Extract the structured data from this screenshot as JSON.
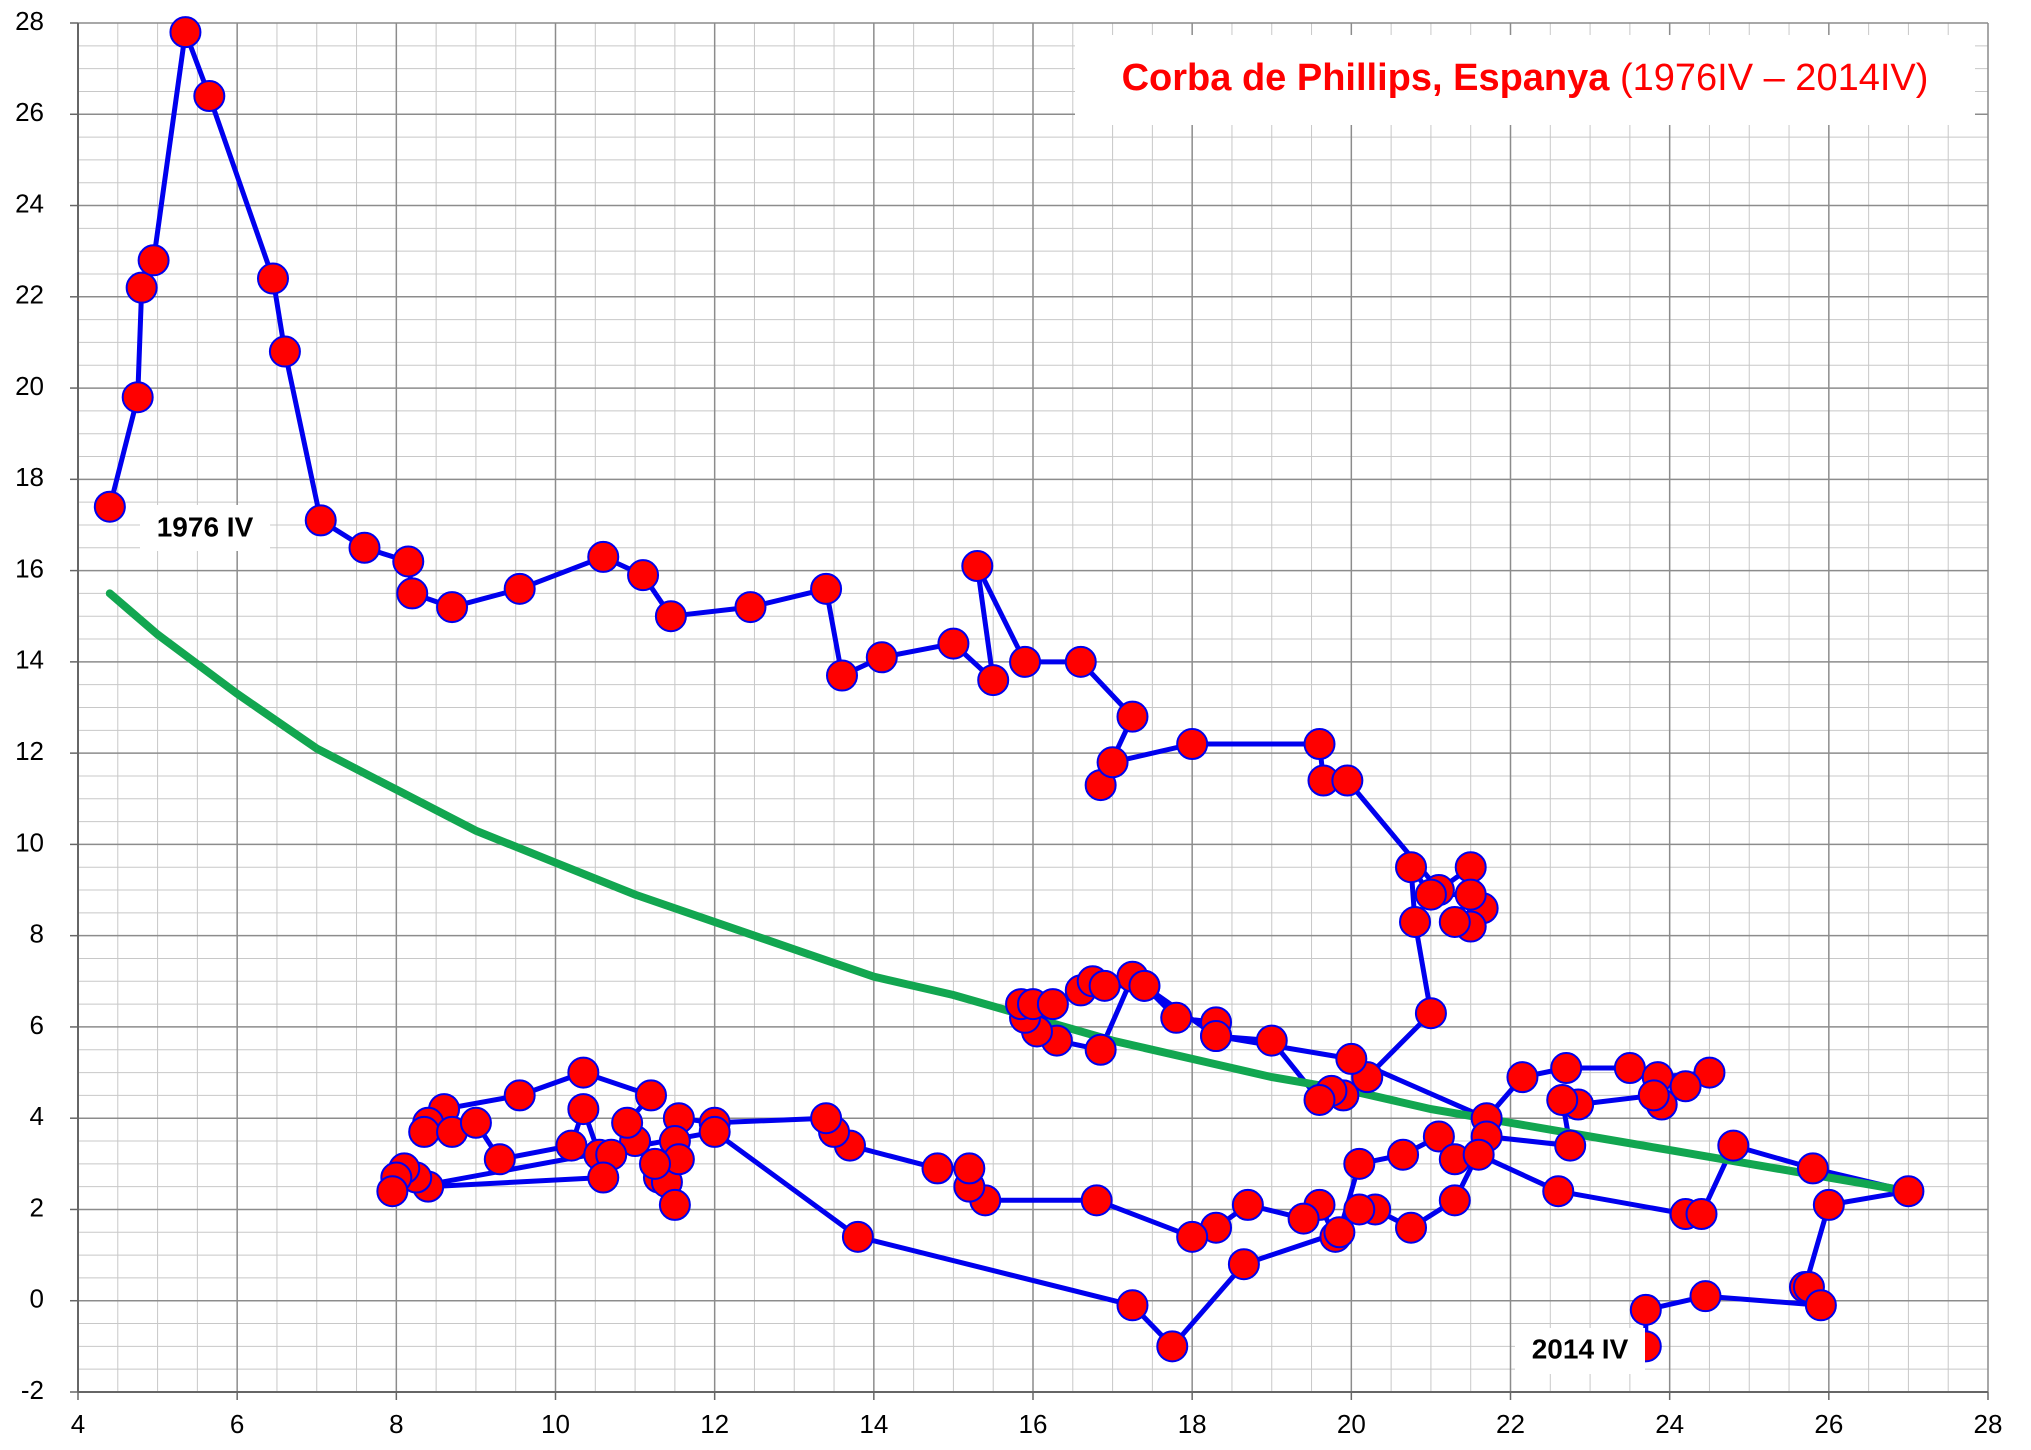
{
  "chart_data": {
    "type": "line",
    "title": "Corba de Phillips, Espanya",
    "subtitle": "(1976IV – 2014IV)",
    "annotations": [
      "1976 IV",
      "2014 IV"
    ],
    "xlim": [
      4,
      28
    ],
    "xticks": [
      4,
      6,
      8,
      10,
      12,
      14,
      16,
      18,
      20,
      22,
      24,
      26,
      28
    ],
    "ylim": [
      -2,
      28
    ],
    "yticks": [
      -2,
      0,
      2,
      4,
      6,
      8,
      10,
      12,
      14,
      16,
      18,
      20,
      22,
      24,
      26,
      28
    ],
    "grid": true,
    "minor_grid": 4,
    "points": {
      "color": "#0000ee",
      "marker_color": "#ff0000",
      "x": [
        4.4,
        4.75,
        4.8,
        4.95,
        5.35,
        5.65,
        6.45,
        6.6,
        7.05,
        7.6,
        8.15,
        8.2,
        8.7,
        9.55,
        10.6,
        11.1,
        11.45,
        12.45,
        13.4,
        13.6,
        14.1,
        15.0,
        15.5,
        15.3,
        15.9,
        16.6,
        17.25,
        16.85,
        17.0,
        18.0,
        19.6,
        19.65,
        19.95,
        21.1,
        21.5,
        21.65,
        21.5,
        21.3,
        21.5,
        21.0,
        20.75,
        20.8,
        21.0,
        20.2,
        19.9,
        19.75,
        19.6,
        19.0,
        18.3,
        18.3,
        17.8,
        17.4,
        17.25,
        16.85,
        16.3,
        16.05,
        15.9,
        15.85,
        16.0,
        16.25,
        16.6,
        16.75,
        16.9,
        17.4,
        18.3,
        20.0,
        21.7,
        22.15,
        22.7,
        23.5,
        23.85,
        24.5,
        24.2,
        23.9,
        23.8,
        22.85,
        22.65,
        22.75,
        21.7,
        21.3,
        20.75,
        20.3,
        20.1,
        19.8,
        19.6,
        19.4,
        18.7,
        18.3,
        18.0,
        16.8,
        15.4,
        15.2,
        15.2,
        14.8,
        13.7,
        13.5,
        13.4,
        12.0,
        11.55,
        11.5,
        11.3,
        11.4,
        11.5,
        11.55,
        11.25,
        11.0,
        10.9,
        11.2,
        10.35,
        9.55,
        8.6,
        8.4,
        8.35,
        8.7,
        9.0,
        9.3,
        10.2,
        10.35,
        10.55,
        10.7,
        10.6,
        8.4,
        8.25,
        8.1,
        8.0,
        7.95,
        12.0,
        13.8,
        17.25,
        17.75,
        18.65,
        19.85,
        20.1,
        20.65,
        21.1,
        21.3,
        21.6,
        22.6,
        24.2,
        24.4,
        24.8,
        25.8,
        27.0,
        26.0,
        25.7,
        25.75,
        25.9,
        24.45,
        23.7,
        23.7
      ],
      "values": [
        17.4,
        19.8,
        22.2,
        22.8,
        27.8,
        26.4,
        22.4,
        20.8,
        17.1,
        16.5,
        16.2,
        15.5,
        15.2,
        15.6,
        16.3,
        15.9,
        15.0,
        15.2,
        15.6,
        13.7,
        14.1,
        14.4,
        13.6,
        16.1,
        14.0,
        14.0,
        12.8,
        11.3,
        11.8,
        12.2,
        12.2,
        11.4,
        11.4,
        9.0,
        9.5,
        8.6,
        8.2,
        8.3,
        8.9,
        8.9,
        9.5,
        8.3,
        6.3,
        4.9,
        4.5,
        4.6,
        4.4,
        5.7,
        5.8,
        6.1,
        6.2,
        6.9,
        7.1,
        5.5,
        5.7,
        5.9,
        6.2,
        6.5,
        6.5,
        6.5,
        6.8,
        7.0,
        6.9,
        6.9,
        5.8,
        5.3,
        4.0,
        4.9,
        5.1,
        5.1,
        4.9,
        5.0,
        4.7,
        4.3,
        4.5,
        4.3,
        4.4,
        3.4,
        3.6,
        2.2,
        1.6,
        2.0,
        2.0,
        1.4,
        2.1,
        1.8,
        2.1,
        1.6,
        1.4,
        2.2,
        2.2,
        2.5,
        2.9,
        2.9,
        3.4,
        3.7,
        4.0,
        3.9,
        4.0,
        3.5,
        2.7,
        2.6,
        2.1,
        3.1,
        3.0,
        3.5,
        3.9,
        4.5,
        5.0,
        4.5,
        4.2,
        3.9,
        3.7,
        3.7,
        3.9,
        3.1,
        3.4,
        4.2,
        3.2,
        3.2,
        2.7,
        2.5,
        2.7,
        2.9,
        2.7,
        2.4,
        3.7,
        1.4,
        -0.1,
        -1.0,
        0.8,
        1.5,
        3.0,
        3.2,
        3.6,
        3.1,
        3.2,
        2.4,
        1.9,
        1.9,
        3.4,
        2.9,
        2.4,
        2.1,
        0.3,
        0.3,
        -0.1,
        0.1,
        -0.2,
        -1.0
      ]
    },
    "trend": {
      "color": "#12a650",
      "x": [
        4.4,
        5,
        6,
        7,
        8,
        9,
        10,
        11,
        12,
        13,
        14,
        15,
        16,
        17,
        18,
        19,
        20,
        21,
        22,
        23,
        24,
        25,
        26,
        27
      ],
      "values": [
        15.5,
        14.6,
        13.3,
        12.1,
        11.2,
        10.3,
        9.6,
        8.9,
        8.3,
        7.7,
        7.1,
        6.7,
        6.2,
        5.7,
        5.3,
        4.9,
        4.6,
        4.2,
        3.9,
        3.6,
        3.3,
        3.0,
        2.7,
        2.4
      ]
    }
  }
}
